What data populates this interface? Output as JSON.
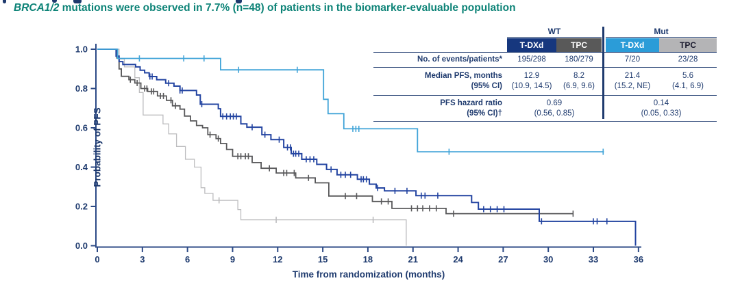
{
  "subtitle": {
    "gene": "BRCA1/2",
    "rest": " mutations were observed in 7.7% (n=48) of patients in the biomarker-evaluable population"
  },
  "colors": {
    "teal_heading": "#0d8377",
    "navy_text": "#1e3a6e",
    "axis": "#2c4a86",
    "wt_tdxd_header": "#16377e",
    "wt_tpc_header": "#595959",
    "mut_tdxd_header": "#2b9cd8",
    "mut_tpc_header": "#b4b4b6",
    "wt_tdxd_curve": "#2344a1",
    "wt_tpc_curve": "#58585a",
    "mut_tdxd_curve": "#41a4d8",
    "mut_tpc_curve": "#bcbcbe"
  },
  "table": {
    "groups": [
      "WT",
      "Mut"
    ],
    "col_headers": [
      "T-DXd",
      "TPC",
      "T-DXd",
      "TPC"
    ],
    "rows": {
      "events": {
        "label": "No. of events/patients*",
        "values": [
          "195/298",
          "180/279",
          "7/20",
          "23/28"
        ]
      },
      "median": {
        "label": "Median PFS, months",
        "sublabel": "(95% CI)",
        "values": [
          "12.9",
          "8.2",
          "21.4",
          "5.6"
        ],
        "ci": [
          "(10.9, 14.5)",
          "(6.9, 9.6)",
          "(15.2, NE)",
          "(4.1, 6.9)"
        ]
      },
      "hr": {
        "label": "PFS hazard ratio",
        "sublabel": "(95% CI)†",
        "values": [
          "0.69",
          "0.14"
        ],
        "ci": [
          "(0.56, 0.85)",
          "(0.05, 0.33)"
        ]
      }
    }
  },
  "chart_data": {
    "type": "line",
    "subtype": "kaplan-meier-step",
    "title": "",
    "xlabel": "Time from randomization (months)",
    "ylabel": "Probability of PFS",
    "xlim": [
      0,
      36
    ],
    "ylim": [
      0.0,
      1.0
    ],
    "xticks": [
      0,
      3,
      6,
      9,
      12,
      15,
      18,
      21,
      24,
      27,
      30,
      33,
      36
    ],
    "yticks": [
      0.0,
      0.2,
      0.4,
      0.6,
      0.8,
      1.0
    ],
    "grid": false,
    "legend": "none (identified via table header colors)",
    "series": [
      {
        "name": "Mut TPC",
        "color": "#bcbcbe",
        "width": 1.3,
        "points": [
          [
            0,
            1
          ],
          [
            1.45,
            1
          ],
          [
            1.45,
            0.95
          ],
          [
            1.8,
            0.95
          ],
          [
            1.8,
            0.91
          ],
          [
            2.5,
            0.91
          ],
          [
            2.5,
            0.855
          ],
          [
            2.8,
            0.855
          ],
          [
            2.8,
            0.78
          ],
          [
            3.05,
            0.78
          ],
          [
            3.05,
            0.665
          ],
          [
            4.37,
            0.665
          ],
          [
            4.37,
            0.62
          ],
          [
            4.75,
            0.62
          ],
          [
            4.75,
            0.569
          ],
          [
            5.27,
            0.569
          ],
          [
            5.27,
            0.505
          ],
          [
            5.86,
            0.505
          ],
          [
            5.86,
            0.44
          ],
          [
            6.46,
            0.44
          ],
          [
            6.46,
            0.4
          ],
          [
            6.9,
            0.4
          ],
          [
            6.9,
            0.295
          ],
          [
            7.15,
            0.295
          ],
          [
            7.15,
            0.266
          ],
          [
            7.7,
            0.266
          ],
          [
            7.7,
            0.231
          ],
          [
            9.35,
            0.231
          ],
          [
            9.35,
            0.184
          ],
          [
            9.55,
            0.184
          ],
          [
            9.55,
            0.132
          ],
          [
            20.55,
            0.132
          ],
          [
            20.55,
            0
          ]
        ],
        "censor_times": [
          8.1,
          11.9,
          18.35
        ]
      },
      {
        "name": "WT TPC",
        "color": "#58585a",
        "width": 1.8,
        "points": [
          [
            0,
            1
          ],
          [
            1.3,
            1
          ],
          [
            1.3,
            0.955
          ],
          [
            1.45,
            0.955
          ],
          [
            1.45,
            0.9
          ],
          [
            1.6,
            0.9
          ],
          [
            1.6,
            0.862
          ],
          [
            2.1,
            0.862
          ],
          [
            2.1,
            0.845
          ],
          [
            2.5,
            0.845
          ],
          [
            2.5,
            0.828
          ],
          [
            2.9,
            0.828
          ],
          [
            2.9,
            0.8
          ],
          [
            3.35,
            0.8
          ],
          [
            3.35,
            0.785
          ],
          [
            4.0,
            0.785
          ],
          [
            4.0,
            0.762
          ],
          [
            4.6,
            0.762
          ],
          [
            4.6,
            0.74
          ],
          [
            5.0,
            0.74
          ],
          [
            5.0,
            0.712
          ],
          [
            5.5,
            0.712
          ],
          [
            5.5,
            0.695
          ],
          [
            5.8,
            0.695
          ],
          [
            5.8,
            0.66
          ],
          [
            6.2,
            0.66
          ],
          [
            6.2,
            0.635
          ],
          [
            6.6,
            0.635
          ],
          [
            6.6,
            0.612
          ],
          [
            7.0,
            0.612
          ],
          [
            7.0,
            0.6
          ],
          [
            7.35,
            0.6
          ],
          [
            7.35,
            0.565
          ],
          [
            7.9,
            0.565
          ],
          [
            7.9,
            0.545
          ],
          [
            8.2,
            0.545
          ],
          [
            8.2,
            0.52
          ],
          [
            8.6,
            0.52
          ],
          [
            8.6,
            0.49
          ],
          [
            9.0,
            0.49
          ],
          [
            9.0,
            0.455
          ],
          [
            10.3,
            0.455
          ],
          [
            10.3,
            0.423
          ],
          [
            10.9,
            0.423
          ],
          [
            10.9,
            0.394
          ],
          [
            11.9,
            0.394
          ],
          [
            11.9,
            0.37
          ],
          [
            13.2,
            0.37
          ],
          [
            13.2,
            0.345
          ],
          [
            14.5,
            0.345
          ],
          [
            14.5,
            0.32
          ],
          [
            15.4,
            0.32
          ],
          [
            15.4,
            0.253
          ],
          [
            18.3,
            0.253
          ],
          [
            18.3,
            0.225
          ],
          [
            19.6,
            0.225
          ],
          [
            19.6,
            0.19
          ],
          [
            23.2,
            0.19
          ],
          [
            23.2,
            0.163
          ],
          [
            31.65,
            0.163
          ]
        ],
        "censor_times": [
          2.2,
          2.65,
          3.15,
          3.3,
          3.6,
          3.75,
          4.2,
          4.4,
          4.9,
          5.2,
          7.5,
          8.05,
          9.35,
          9.55,
          9.85,
          10.05,
          11.45,
          12.4,
          12.6,
          13.1,
          14.05,
          16.5,
          17.25,
          18.9,
          19.35,
          20.9,
          21.3,
          21.65,
          22.1,
          22.55,
          23.7,
          31.65
        ]
      },
      {
        "name": "WT T-DXd",
        "color": "#2344a1",
        "width": 2,
        "points": [
          [
            0,
            1
          ],
          [
            1.25,
            1
          ],
          [
            1.25,
            0.965
          ],
          [
            1.45,
            0.965
          ],
          [
            1.45,
            0.937
          ],
          [
            1.7,
            0.937
          ],
          [
            1.7,
            0.922
          ],
          [
            2.55,
            0.922
          ],
          [
            2.55,
            0.91
          ],
          [
            2.85,
            0.91
          ],
          [
            2.85,
            0.893
          ],
          [
            3.15,
            0.893
          ],
          [
            3.15,
            0.88
          ],
          [
            3.45,
            0.88
          ],
          [
            3.45,
            0.861
          ],
          [
            3.95,
            0.861
          ],
          [
            3.95,
            0.845
          ],
          [
            4.55,
            0.845
          ],
          [
            4.55,
            0.827
          ],
          [
            5.1,
            0.827
          ],
          [
            5.1,
            0.812
          ],
          [
            5.5,
            0.812
          ],
          [
            5.5,
            0.79
          ],
          [
            6.6,
            0.79
          ],
          [
            6.6,
            0.767
          ],
          [
            6.85,
            0.767
          ],
          [
            6.85,
            0.72
          ],
          [
            8.05,
            0.72
          ],
          [
            8.05,
            0.697
          ],
          [
            8.2,
            0.697
          ],
          [
            8.2,
            0.658
          ],
          [
            9.55,
            0.658
          ],
          [
            9.55,
            0.62
          ],
          [
            9.95,
            0.62
          ],
          [
            9.95,
            0.603
          ],
          [
            10.95,
            0.603
          ],
          [
            10.95,
            0.565
          ],
          [
            11.55,
            0.565
          ],
          [
            11.55,
            0.54
          ],
          [
            12.4,
            0.54
          ],
          [
            12.4,
            0.5
          ],
          [
            12.9,
            0.5
          ],
          [
            12.9,
            0.468
          ],
          [
            13.6,
            0.468
          ],
          [
            13.6,
            0.44
          ],
          [
            14.6,
            0.44
          ],
          [
            14.6,
            0.414
          ],
          [
            15.25,
            0.414
          ],
          [
            15.25,
            0.388
          ],
          [
            15.95,
            0.388
          ],
          [
            15.95,
            0.361
          ],
          [
            17.3,
            0.361
          ],
          [
            17.3,
            0.338
          ],
          [
            18.1,
            0.338
          ],
          [
            18.1,
            0.313
          ],
          [
            18.55,
            0.313
          ],
          [
            18.55,
            0.294
          ],
          [
            19.1,
            0.294
          ],
          [
            19.1,
            0.279
          ],
          [
            21.2,
            0.279
          ],
          [
            21.2,
            0.255
          ],
          [
            24.9,
            0.255
          ],
          [
            24.9,
            0.22
          ],
          [
            25.35,
            0.22
          ],
          [
            25.35,
            0.186
          ],
          [
            29.4,
            0.186
          ],
          [
            29.4,
            0.124
          ],
          [
            35.8,
            0.124
          ],
          [
            35.8,
            0
          ]
        ],
        "censor_times": [
          3.5,
          3.65,
          4.75,
          5.5,
          5.65,
          6.95,
          8.35,
          8.6,
          8.85,
          9.05,
          9.25,
          10.3,
          11.15,
          12.1,
          12.65,
          12.85,
          13.05,
          13.2,
          13.4,
          13.9,
          14.15,
          14.4,
          15.55,
          16.2,
          16.5,
          16.85,
          17.55,
          17.7,
          17.9,
          18.65,
          19.8,
          20.6,
          21.55,
          21.8,
          22.65,
          25.7,
          26.15,
          26.6,
          27.05,
          29.55,
          33.0,
          33.25,
          33.9
        ]
      },
      {
        "name": "Mut T-DXd",
        "color": "#41a4d8",
        "width": 1.8,
        "points": [
          [
            0,
            1
          ],
          [
            1.35,
            1
          ],
          [
            1.35,
            0.953
          ],
          [
            8.2,
            0.953
          ],
          [
            8.2,
            0.895
          ],
          [
            15.05,
            0.895
          ],
          [
            15.05,
            0.745
          ],
          [
            15.35,
            0.745
          ],
          [
            15.35,
            0.672
          ],
          [
            16.4,
            0.672
          ],
          [
            16.4,
            0.595
          ],
          [
            21.3,
            0.595
          ],
          [
            21.3,
            0.478
          ],
          [
            33.7,
            0.478
          ]
        ],
        "censor_times": [
          2.8,
          5.75,
          7.1,
          9.4,
          13.3,
          17.0,
          17.2,
          17.4,
          23.4,
          33.65
        ]
      }
    ]
  }
}
